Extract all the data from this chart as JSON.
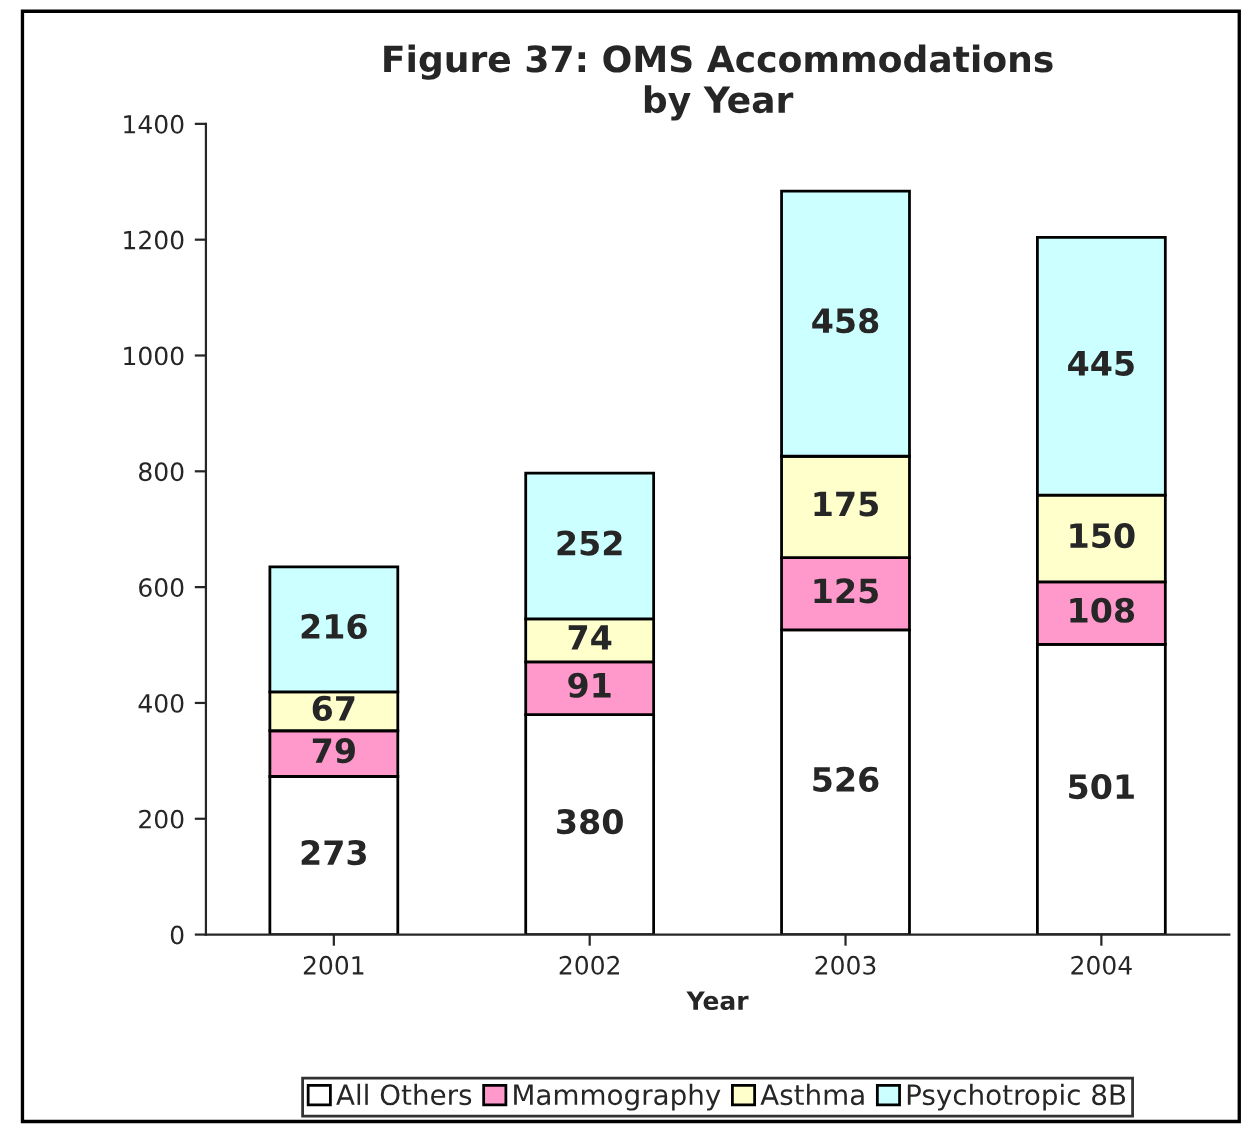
{
  "chart_data": {
    "type": "bar",
    "title": "Figure 37: OMS Accommodations\nby Year",
    "xlabel": "Year",
    "categories": [
      "2001",
      "2002",
      "2003",
      "2004"
    ],
    "stacked": true,
    "data_labels": true,
    "legend": "bottom",
    "grid": false,
    "ylim": [
      0,
      1400
    ],
    "yticks": [
      0,
      200,
      400,
      600,
      800,
      1000,
      1200,
      1400
    ],
    "series": [
      {
        "name": "All Others",
        "color": "#ffffff",
        "values": [
          273,
          380,
          526,
          501
        ]
      },
      {
        "name": "Mammography",
        "color": "#ff99cc",
        "values": [
          79,
          91,
          125,
          108
        ]
      },
      {
        "name": "Asthma",
        "color": "#ffffcc",
        "values": [
          67,
          74,
          175,
          150
        ]
      },
      {
        "name": "Psychotropic 8B",
        "color": "#ccffff",
        "values": [
          216,
          252,
          458,
          445
        ]
      }
    ]
  }
}
